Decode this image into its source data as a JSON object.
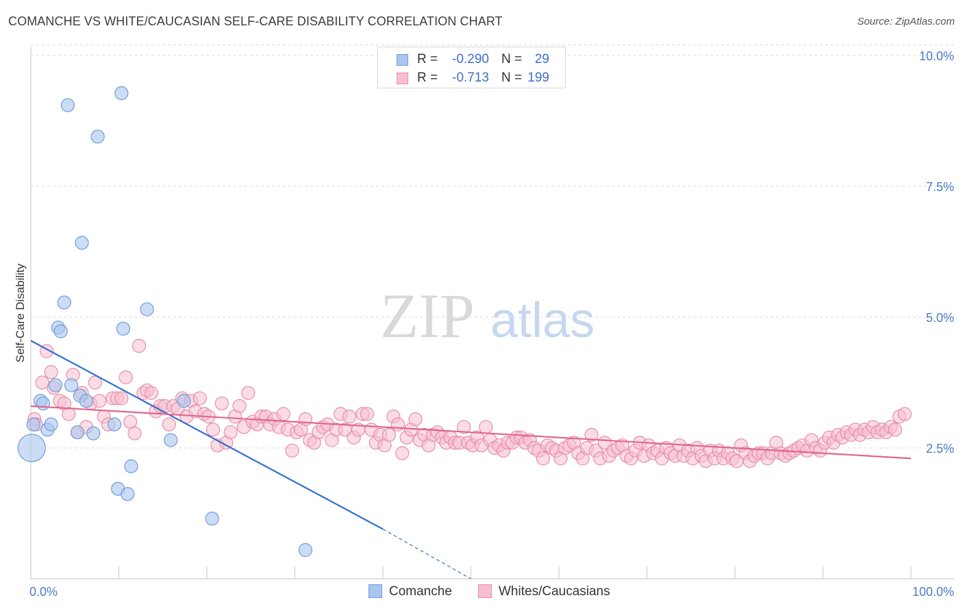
{
  "title": "COMANCHE VS WHITE/CAUCASIAN SELF-CARE DISABILITY CORRELATION CHART",
  "source": "Source: ZipAtlas.com",
  "watermark": {
    "zip": "ZIP",
    "atlas": "atlas"
  },
  "legend": {
    "series1": {
      "r_label": "R = ",
      "r_value": "-0.290",
      "n_label": "N = ",
      "n_value": "29"
    },
    "series2": {
      "r_label": "R = ",
      "r_value": "-0.713",
      "n_label": "N = ",
      "n_value": "199"
    }
  },
  "bottom_legend": {
    "series1": "Comanche",
    "series2": "Whites/Caucasians"
  },
  "colors": {
    "blue_fill": "#a9c6ee",
    "blue_stroke": "#6f9bd9",
    "blue_line": "#2f6fd1",
    "pink_fill": "#f6bfd0",
    "pink_stroke": "#e98ca9",
    "pink_line": "#e0668f",
    "tick_text": "#4a7cc9",
    "grid": "#d9d9d9"
  },
  "chart_data": {
    "type": "scatter",
    "title": "COMANCHE VS WHITE/CAUCASIAN SELF-CARE DISABILITY CORRELATION CHART",
    "xlabel": "",
    "ylabel": "Self-Care Disability",
    "xlim": [
      0,
      100
    ],
    "ylim": [
      0,
      10.2
    ],
    "x_tick_labels": [
      "0.0%",
      "100.0%"
    ],
    "y_ticks": [
      2.5,
      5.0,
      7.5,
      10.0
    ],
    "y_tick_labels": [
      "2.5%",
      "5.0%",
      "7.5%",
      "10.0%"
    ],
    "series": [
      {
        "name": "Comanche",
        "r": -0.29,
        "n": 29,
        "trend": {
          "x0": 0,
          "y0": 4.55,
          "x1": 40,
          "y1": 0.95,
          "dash_to_x": 50,
          "dash_to_y": 0.0
        },
        "points": [
          [
            0.1,
            2.5,
            1.9
          ],
          [
            0.3,
            2.95,
            0.9
          ],
          [
            1.1,
            3.4,
            0.9
          ],
          [
            1.4,
            3.35,
            0.9
          ],
          [
            1.9,
            2.85,
            0.9
          ],
          [
            2.3,
            2.95,
            0.9
          ],
          [
            2.8,
            3.7,
            0.9
          ],
          [
            3.1,
            4.8,
            0.9
          ],
          [
            3.4,
            4.73,
            0.9
          ],
          [
            3.8,
            5.28,
            0.9
          ],
          [
            4.2,
            9.05,
            0.9
          ],
          [
            4.6,
            3.7,
            0.9
          ],
          [
            5.3,
            2.8,
            0.9
          ],
          [
            5.6,
            3.5,
            0.9
          ],
          [
            5.8,
            6.42,
            0.9
          ],
          [
            6.3,
            3.4,
            0.9
          ],
          [
            7.1,
            2.78,
            0.9
          ],
          [
            7.6,
            8.45,
            0.9
          ],
          [
            9.5,
            2.95,
            0.9
          ],
          [
            9.9,
            1.72,
            0.9
          ],
          [
            10.3,
            9.28,
            0.9
          ],
          [
            10.5,
            4.78,
            0.9
          ],
          [
            11.0,
            1.62,
            0.9
          ],
          [
            11.4,
            2.15,
            0.9
          ],
          [
            13.2,
            5.15,
            0.9
          ],
          [
            15.9,
            2.65,
            0.9
          ],
          [
            17.4,
            3.4,
            0.9
          ],
          [
            20.6,
            1.15,
            0.9
          ],
          [
            31.2,
            0.55,
            0.9
          ]
        ]
      },
      {
        "name": "Whites/Caucasians",
        "r": -0.713,
        "n": 199,
        "trend": {
          "x0": 0,
          "y0": 3.3,
          "x1": 100,
          "y1": 2.3
        },
        "points": [
          [
            0.4,
            3.05
          ],
          [
            0.6,
            2.95
          ],
          [
            1.3,
            3.75
          ],
          [
            1.8,
            4.35
          ],
          [
            2.3,
            3.95
          ],
          [
            2.6,
            3.65
          ],
          [
            3.3,
            3.4
          ],
          [
            3.8,
            3.35
          ],
          [
            4.3,
            3.15
          ],
          [
            4.8,
            3.9
          ],
          [
            5.3,
            2.8
          ],
          [
            5.8,
            3.55
          ],
          [
            6.3,
            2.9
          ],
          [
            6.8,
            3.35
          ],
          [
            7.3,
            3.75
          ],
          [
            7.8,
            3.4
          ],
          [
            8.3,
            3.1
          ],
          [
            8.8,
            2.95
          ],
          [
            9.3,
            3.45
          ],
          [
            9.8,
            3.45
          ],
          [
            10.3,
            3.45
          ],
          [
            10.8,
            3.85
          ],
          [
            11.3,
            3.0
          ],
          [
            11.8,
            2.78
          ],
          [
            12.3,
            4.45
          ],
          [
            12.8,
            3.55
          ],
          [
            13.2,
            3.6
          ],
          [
            13.7,
            3.55
          ],
          [
            14.2,
            3.2
          ],
          [
            14.7,
            3.3
          ],
          [
            15.2,
            3.3
          ],
          [
            15.7,
            2.95
          ],
          [
            16.2,
            3.3
          ],
          [
            16.7,
            3.25
          ],
          [
            17.2,
            3.45
          ],
          [
            17.7,
            3.1
          ],
          [
            18.2,
            3.4
          ],
          [
            18.7,
            3.2
          ],
          [
            19.2,
            3.45
          ],
          [
            19.7,
            3.15
          ],
          [
            20.2,
            3.1
          ],
          [
            20.7,
            2.85
          ],
          [
            21.2,
            2.55
          ],
          [
            21.7,
            3.35
          ],
          [
            22.2,
            2.6
          ],
          [
            22.7,
            2.8
          ],
          [
            23.2,
            3.1
          ],
          [
            23.7,
            3.3
          ],
          [
            24.2,
            2.9
          ],
          [
            24.7,
            3.55
          ],
          [
            25.2,
            3.0
          ],
          [
            25.7,
            2.95
          ],
          [
            26.2,
            3.1
          ],
          [
            26.7,
            3.1
          ],
          [
            27.2,
            2.95
          ],
          [
            27.7,
            3.05
          ],
          [
            28.2,
            2.9
          ],
          [
            28.7,
            3.15
          ],
          [
            29.2,
            2.85
          ],
          [
            29.7,
            2.45
          ],
          [
            30.2,
            2.8
          ],
          [
            30.7,
            2.85
          ],
          [
            31.2,
            3.05
          ],
          [
            31.7,
            2.65
          ],
          [
            32.2,
            2.6
          ],
          [
            32.7,
            2.8
          ],
          [
            33.2,
            2.9
          ],
          [
            33.7,
            2.95
          ],
          [
            34.2,
            2.65
          ],
          [
            34.7,
            2.85
          ],
          [
            35.2,
            3.15
          ],
          [
            35.7,
            2.85
          ],
          [
            36.2,
            3.1
          ],
          [
            36.7,
            2.7
          ],
          [
            37.2,
            2.85
          ],
          [
            37.7,
            3.15
          ],
          [
            38.2,
            3.15
          ],
          [
            38.7,
            2.85
          ],
          [
            39.2,
            2.6
          ],
          [
            39.7,
            2.75
          ],
          [
            40.2,
            2.55
          ],
          [
            40.7,
            2.75
          ],
          [
            41.2,
            3.1
          ],
          [
            41.7,
            2.95
          ],
          [
            42.2,
            2.4
          ],
          [
            42.7,
            2.7
          ],
          [
            43.2,
            2.85
          ],
          [
            43.7,
            3.05
          ],
          [
            44.2,
            2.65
          ],
          [
            44.7,
            2.75
          ],
          [
            45.2,
            2.55
          ],
          [
            45.7,
            2.75
          ],
          [
            46.2,
            2.8
          ],
          [
            46.7,
            2.7
          ],
          [
            47.2,
            2.6
          ],
          [
            47.7,
            2.7
          ],
          [
            48.2,
            2.6
          ],
          [
            48.7,
            2.6
          ],
          [
            49.2,
            2.9
          ],
          [
            49.7,
            2.6
          ],
          [
            50.2,
            2.55
          ],
          [
            50.7,
            2.7
          ],
          [
            51.2,
            2.55
          ],
          [
            51.7,
            2.9
          ],
          [
            52.2,
            2.65
          ],
          [
            52.7,
            2.5
          ],
          [
            53.2,
            2.55
          ],
          [
            53.7,
            2.45
          ],
          [
            54.2,
            2.6
          ],
          [
            54.7,
            2.6
          ],
          [
            55.2,
            2.7
          ],
          [
            55.7,
            2.7
          ],
          [
            56.2,
            2.6
          ],
          [
            56.7,
            2.65
          ],
          [
            57.2,
            2.5
          ],
          [
            57.7,
            2.45
          ],
          [
            58.2,
            2.3
          ],
          [
            58.7,
            2.55
          ],
          [
            59.2,
            2.5
          ],
          [
            59.7,
            2.45
          ],
          [
            60.2,
            2.3
          ],
          [
            60.7,
            2.5
          ],
          [
            61.2,
            2.55
          ],
          [
            61.7,
            2.6
          ],
          [
            62.2,
            2.4
          ],
          [
            62.7,
            2.3
          ],
          [
            63.2,
            2.5
          ],
          [
            63.7,
            2.75
          ],
          [
            64.2,
            2.45
          ],
          [
            64.7,
            2.3
          ],
          [
            65.2,
            2.6
          ],
          [
            65.7,
            2.35
          ],
          [
            66.2,
            2.45
          ],
          [
            66.7,
            2.5
          ],
          [
            67.2,
            2.55
          ],
          [
            67.7,
            2.35
          ],
          [
            68.2,
            2.3
          ],
          [
            68.7,
            2.45
          ],
          [
            69.2,
            2.6
          ],
          [
            69.7,
            2.35
          ],
          [
            70.2,
            2.55
          ],
          [
            70.7,
            2.4
          ],
          [
            71.2,
            2.45
          ],
          [
            71.7,
            2.3
          ],
          [
            72.2,
            2.5
          ],
          [
            72.7,
            2.4
          ],
          [
            73.2,
            2.35
          ],
          [
            73.7,
            2.55
          ],
          [
            74.2,
            2.35
          ],
          [
            74.7,
            2.45
          ],
          [
            75.2,
            2.3
          ],
          [
            75.7,
            2.5
          ],
          [
            76.2,
            2.35
          ],
          [
            76.7,
            2.25
          ],
          [
            77.2,
            2.45
          ],
          [
            77.7,
            2.3
          ],
          [
            78.2,
            2.45
          ],
          [
            78.7,
            2.3
          ],
          [
            79.2,
            2.4
          ],
          [
            79.7,
            2.3
          ],
          [
            80.2,
            2.25
          ],
          [
            80.7,
            2.55
          ],
          [
            81.2,
            2.4
          ],
          [
            81.7,
            2.25
          ],
          [
            82.2,
            2.35
          ],
          [
            82.7,
            2.4
          ],
          [
            83.2,
            2.4
          ],
          [
            83.7,
            2.3
          ],
          [
            84.2,
            2.4
          ],
          [
            84.7,
            2.6
          ],
          [
            85.2,
            2.4
          ],
          [
            85.7,
            2.35
          ],
          [
            86.2,
            2.4
          ],
          [
            86.7,
            2.45
          ],
          [
            87.2,
            2.5
          ],
          [
            87.7,
            2.55
          ],
          [
            88.2,
            2.45
          ],
          [
            88.7,
            2.65
          ],
          [
            89.2,
            2.5
          ],
          [
            89.7,
            2.45
          ],
          [
            90.2,
            2.6
          ],
          [
            90.7,
            2.7
          ],
          [
            91.2,
            2.6
          ],
          [
            91.7,
            2.75
          ],
          [
            92.2,
            2.7
          ],
          [
            92.7,
            2.8
          ],
          [
            93.2,
            2.75
          ],
          [
            93.7,
            2.85
          ],
          [
            94.2,
            2.75
          ],
          [
            94.7,
            2.85
          ],
          [
            95.2,
            2.8
          ],
          [
            95.7,
            2.9
          ],
          [
            96.2,
            2.8
          ],
          [
            96.7,
            2.85
          ],
          [
            97.2,
            2.8
          ],
          [
            97.7,
            2.9
          ],
          [
            98.2,
            2.85
          ],
          [
            98.7,
            3.1
          ],
          [
            99.3,
            3.15
          ]
        ]
      }
    ]
  }
}
